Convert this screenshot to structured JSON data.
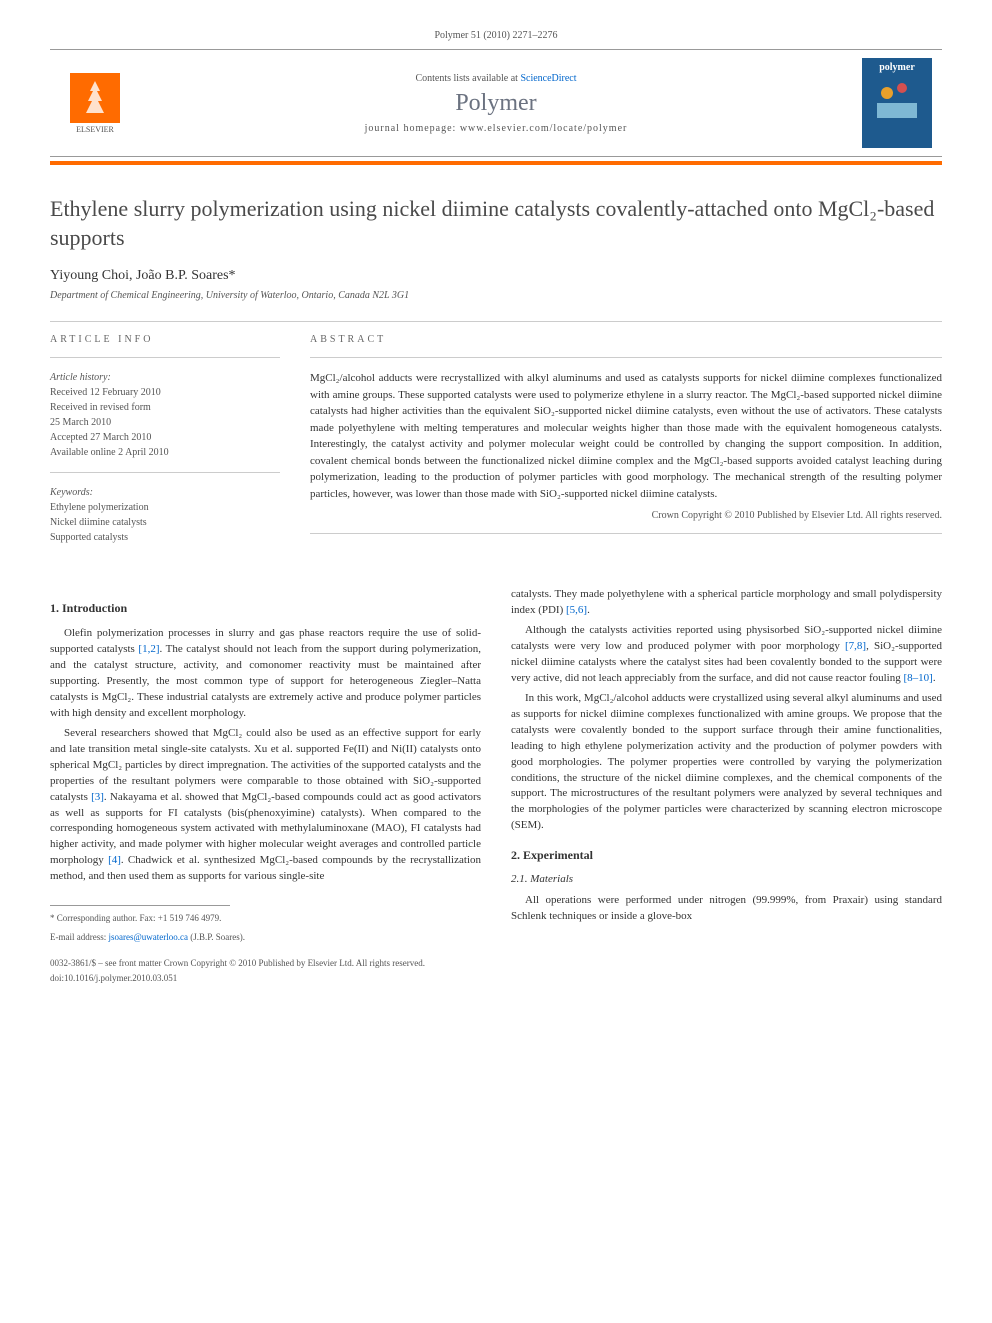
{
  "journal_ref": "Polymer 51 (2010) 2271–2276",
  "header": {
    "elsevier_label": "ELSEVIER",
    "contents_prefix": "Contents lists available at ",
    "sciencedirect": "ScienceDirect",
    "journal_name": "Polymer",
    "homepage_prefix": "journal homepage: ",
    "homepage_url": "www.elsevier.com/locate/polymer",
    "cover_text": "polymer"
  },
  "title": "Ethylene slurry polymerization using nickel diimine catalysts covalently-attached onto MgCl₂-based supports",
  "authors": "Yiyoung Choi, João B.P. Soares*",
  "affiliation": "Department of Chemical Engineering, University of Waterloo, Ontario, Canada N2L 3G1",
  "article_info": {
    "label": "ARTICLE INFO",
    "history_title": "Article history:",
    "history": [
      "Received 12 February 2010",
      "Received in revised form",
      "25 March 2010",
      "Accepted 27 March 2010",
      "Available online 2 April 2010"
    ],
    "keywords_title": "Keywords:",
    "keywords": [
      "Ethylene polymerization",
      "Nickel diimine catalysts",
      "Supported catalysts"
    ]
  },
  "abstract": {
    "label": "ABSTRACT",
    "text": "MgCl₂/alcohol adducts were recrystallized with alkyl aluminums and used as catalysts supports for nickel diimine complexes functionalized with amine groups. These supported catalysts were used to polymerize ethylene in a slurry reactor. The MgCl₂-based supported nickel diimine catalysts had higher activities than the equivalent SiO₂-supported nickel diimine catalysts, even without the use of activators. These catalysts made polyethylene with melting temperatures and molecular weights higher than those made with the equivalent homogeneous catalysts. Interestingly, the catalyst activity and polymer molecular weight could be controlled by changing the support composition. In addition, covalent chemical bonds between the functionalized nickel diimine complex and the MgCl₂-based supports avoided catalyst leaching during polymerization, leading to the production of polymer particles with good morphology. The mechanical strength of the resulting polymer particles, however, was lower than those made with SiO₂-supported nickel diimine catalysts.",
    "copyright": "Crown Copyright © 2010 Published by Elsevier Ltd. All rights reserved."
  },
  "body": {
    "intro_heading": "1. Introduction",
    "intro_p1": "Olefin polymerization processes in slurry and gas phase reactors require the use of solid-supported catalysts [1,2]. The catalyst should not leach from the support during polymerization, and the catalyst structure, activity, and comonomer reactivity must be maintained after supporting. Presently, the most common type of support for heterogeneous Ziegler–Natta catalysts is MgCl₂. These industrial catalysts are extremely active and produce polymer particles with high density and excellent morphology.",
    "intro_p2": "Several researchers showed that MgCl₂ could also be used as an effective support for early and late transition metal single-site catalysts. Xu et al. supported Fe(II) and Ni(II) catalysts onto spherical MgCl₂ particles by direct impregnation. The activities of the supported catalysts and the properties of the resultant polymers were comparable to those obtained with SiO₂-supported catalysts [3]. Nakayama et al. showed that MgCl₂-based compounds could act as good activators as well as supports for FI catalysts (bis(phenoxyimine) catalysts). When compared to the corresponding homogeneous system activated with methylaluminoxane (MAO), FI catalysts had higher activity, and made polymer with higher molecular weight averages and controlled particle morphology [4]. Chadwick et al. synthesized MgCl₂-based compounds by the recrystallization method, and then used them as supports for various single-site",
    "intro_p3": "catalysts. They made polyethylene with a spherical particle morphology and small polydispersity index (PDI) [5,6].",
    "intro_p4": "Although the catalysts activities reported using physisorbed SiO₂-supported nickel diimine catalysts were very low and produced polymer with poor morphology [7,8], SiO₂-supported nickel diimine catalysts where the catalyst sites had been covalently bonded to the support were very active, did not leach appreciably from the surface, and did not cause reactor fouling [8–10].",
    "intro_p5": "In this work, MgCl₂/alcohol adducts were crystallized using several alkyl aluminums and used as supports for nickel diimine complexes functionalized with amine groups. We propose that the catalysts were covalently bonded to the support surface through their amine functionalities, leading to high ethylene polymerization activity and the production of polymer powders with good morphologies. The polymer properties were controlled by varying the polymerization conditions, the structure of the nickel diimine complexes, and the chemical components of the support. The microstructures of the resultant polymers were analyzed by several techniques and the morphologies of the polymer particles were characterized by scanning electron microscope (SEM).",
    "exp_heading": "2. Experimental",
    "materials_heading": "2.1. Materials",
    "materials_p1": "All operations were performed under nitrogen (99.999%, from Praxair) using standard Schlenk techniques or inside a glove-box"
  },
  "footnote": {
    "corr": "* Corresponding author. Fax: +1 519 746 4979.",
    "email_label": "E-mail address: ",
    "email": "jsoares@uwaterloo.ca",
    "email_suffix": " (J.B.P. Soares)."
  },
  "footer": {
    "line1": "0032-3861/$ – see front matter Crown Copyright © 2010 Published by Elsevier Ltd. All rights reserved.",
    "line2": "doi:10.1016/j.polymer.2010.03.051"
  },
  "citations": {
    "c12": "[1,2]",
    "c3": "[3]",
    "c4": "[4]",
    "c56": "[5,6]",
    "c78": "[7,8]",
    "c810": "[8–10]"
  }
}
